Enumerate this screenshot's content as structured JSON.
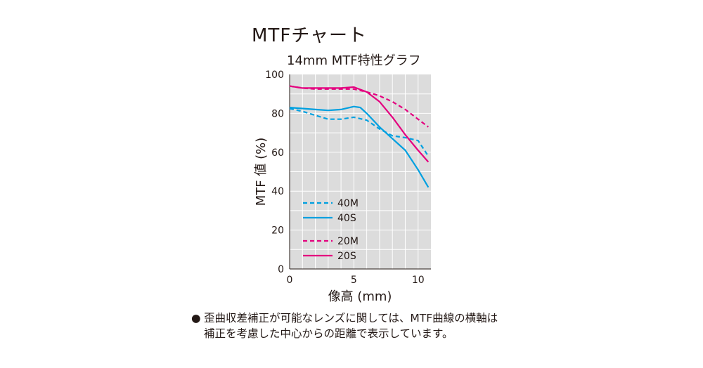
{
  "page": {
    "heading": "MTFチャート",
    "note_bullet": "●",
    "note_line1": "歪曲収差補正が可能なレンズに関しては、MTF曲線の横軸は",
    "note_line2": "補正を考慮した中心からの距離で表示しています。"
  },
  "chart_data": {
    "type": "line",
    "title": "14mm MTF特性グラフ",
    "xlabel": "像高 (mm)",
    "ylabel": "MTF 値 (%)",
    "xlim": [
      0,
      11
    ],
    "ylim": [
      0,
      100
    ],
    "xticks": [
      0,
      5,
      10
    ],
    "yticks": [
      0,
      20,
      40,
      60,
      80,
      100
    ],
    "grid": true,
    "background": "#dcdcdc",
    "legend_position": "bottom-left",
    "series": [
      {
        "name": "40M",
        "color": "#00a0e0",
        "style": "dashed",
        "x": [
          0,
          1,
          2,
          3,
          4,
          5,
          6,
          7,
          8,
          9,
          10,
          10.8
        ],
        "y": [
          82.5,
          81,
          79,
          77,
          77,
          78,
          76.5,
          72,
          68.5,
          67.5,
          66,
          58
        ]
      },
      {
        "name": "40S",
        "color": "#00a0e0",
        "style": "solid",
        "x": [
          0,
          1,
          2,
          3,
          4,
          5,
          5.5,
          6,
          7,
          8,
          9,
          10,
          10.8
        ],
        "y": [
          83,
          82.5,
          82,
          81.5,
          82,
          83.5,
          83,
          80,
          73,
          67,
          61,
          51,
          42
        ]
      },
      {
        "name": "20M",
        "color": "#e4007f",
        "style": "dashed",
        "x": [
          0,
          1,
          2,
          3,
          4,
          5,
          6,
          7,
          8,
          9,
          10,
          10.8
        ],
        "y": [
          94,
          93,
          92.5,
          92.5,
          92.5,
          92.5,
          91,
          89,
          86,
          82,
          77,
          73
        ]
      },
      {
        "name": "20S",
        "color": "#e4007f",
        "style": "solid",
        "x": [
          0,
          1,
          2,
          3,
          4,
          5,
          6,
          7,
          8,
          9,
          10,
          10.8
        ],
        "y": [
          94,
          93,
          93,
          93,
          93,
          93.5,
          91,
          86,
          78,
          69,
          61,
          55
        ]
      }
    ]
  }
}
